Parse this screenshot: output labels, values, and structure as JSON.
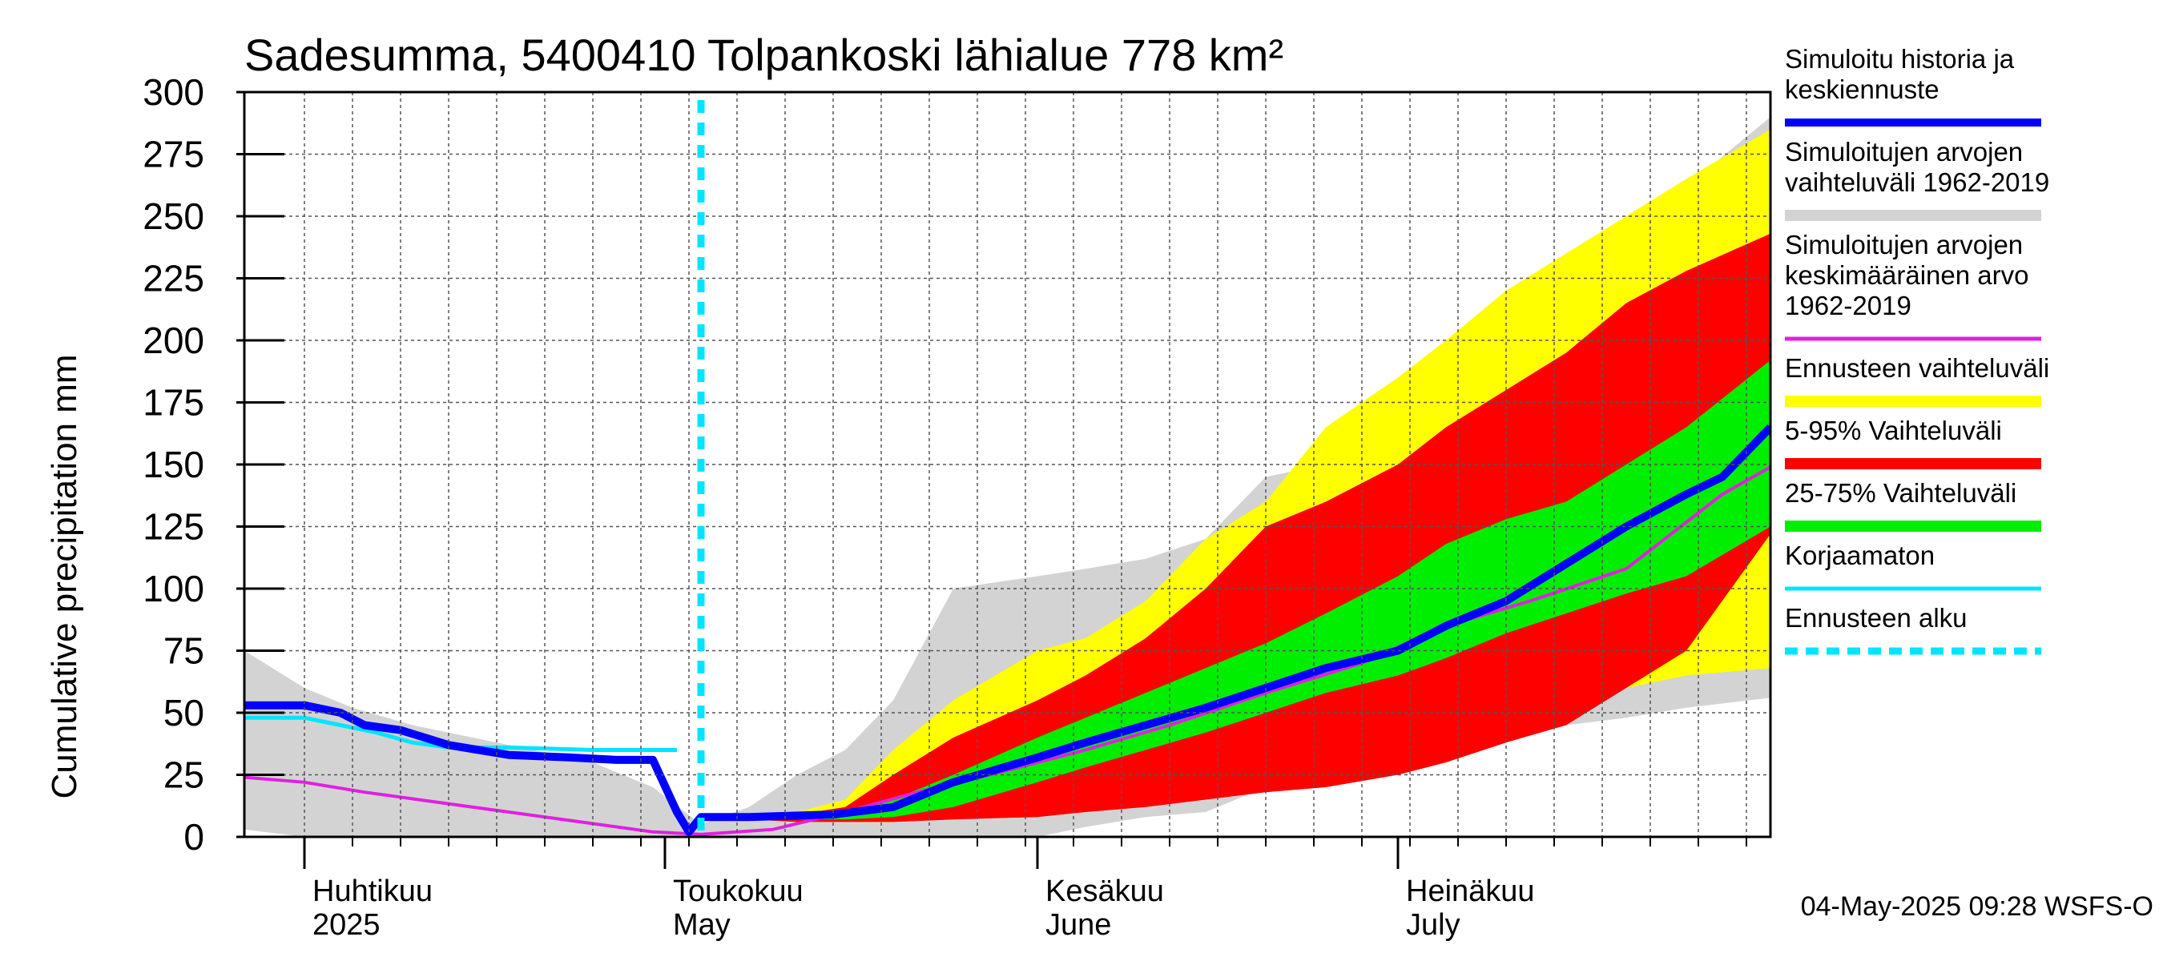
{
  "chart_data": {
    "type": "area",
    "title": "Sadesumma, 5400410 Tolpankoski lähialue 778 km²",
    "ylabel": "Cumulative precipitation   mm",
    "xlabel": "",
    "x_range": [
      "2025-03-27",
      "2025-08-01"
    ],
    "ylim": [
      0,
      300
    ],
    "yticks": [
      0,
      25,
      50,
      75,
      100,
      125,
      150,
      175,
      200,
      225,
      250,
      275,
      300
    ],
    "grid": true,
    "legend_position": "right",
    "month_labels": [
      {
        "date": "2025-04-01",
        "line1": "Huhtikuu",
        "line2": "2025"
      },
      {
        "date": "2025-05-01",
        "line1": "Toukokuu",
        "line2": "May"
      },
      {
        "date": "2025-06-01",
        "line1": "Kesäkuu",
        "line2": "June"
      },
      {
        "date": "2025-07-01",
        "line1": "Heinäkuu",
        "line2": "July"
      }
    ],
    "forecast_start": "2025-05-04",
    "colors": {
      "hist_range": "#d3d3d3",
      "forecast_range": "#ffff00",
      "p5_95": "#ff0000",
      "p25_75": "#00ee00",
      "simulated": "#0000ff",
      "mean": "#e020e0",
      "uncorrected": "#00e5ff",
      "forecast_start": "#00e5ff",
      "grid": "#555555"
    },
    "hist_range": {
      "x": [
        "2025-03-27",
        "2025-04-01",
        "2025-04-05",
        "2025-04-10",
        "2025-04-15",
        "2025-04-20",
        "2025-04-25",
        "2025-04-30",
        "2025-05-04",
        "2025-05-08",
        "2025-05-12",
        "2025-05-16",
        "2025-05-20",
        "2025-05-25",
        "2025-06-01",
        "2025-06-05",
        "2025-06-10",
        "2025-06-15",
        "2025-06-20",
        "2025-06-25",
        "2025-07-01",
        "2025-07-05",
        "2025-07-10",
        "2025-07-15",
        "2025-07-20",
        "2025-07-25",
        "2025-08-01"
      ],
      "upper": [
        75,
        60,
        52,
        45,
        40,
        35,
        30,
        20,
        5,
        12,
        25,
        35,
        55,
        100,
        105,
        108,
        112,
        120,
        145,
        150,
        155,
        172,
        190,
        205,
        230,
        262,
        290
      ],
      "lower": [
        3,
        0,
        0,
        0,
        0,
        0,
        0,
        0,
        0,
        0,
        0,
        0,
        0,
        0,
        0,
        4,
        8,
        10,
        20,
        25,
        30,
        40,
        44,
        45,
        48,
        52,
        56
      ]
    },
    "forecast_range": {
      "x": [
        "2025-05-04",
        "2025-05-08",
        "2025-05-12",
        "2025-05-16",
        "2025-05-20",
        "2025-05-25",
        "2025-06-01",
        "2025-06-05",
        "2025-06-10",
        "2025-06-15",
        "2025-06-20",
        "2025-06-25",
        "2025-07-01",
        "2025-07-05",
        "2025-07-10",
        "2025-07-15",
        "2025-07-20",
        "2025-07-25",
        "2025-08-01"
      ],
      "upper": [
        8,
        8,
        10,
        15,
        35,
        55,
        75,
        80,
        95,
        120,
        135,
        165,
        185,
        200,
        220,
        235,
        250,
        265,
        285
      ],
      "lower": [
        8,
        7,
        6,
        6,
        6,
        8,
        10,
        14,
        18,
        20,
        25,
        30,
        32,
        37,
        45,
        55,
        60,
        65,
        68
      ]
    },
    "p5_95": {
      "x": [
        "2025-05-04",
        "2025-05-08",
        "2025-05-12",
        "2025-05-16",
        "2025-05-20",
        "2025-05-25",
        "2025-06-01",
        "2025-06-05",
        "2025-06-10",
        "2025-06-15",
        "2025-06-20",
        "2025-06-25",
        "2025-07-01",
        "2025-07-05",
        "2025-07-10",
        "2025-07-15",
        "2025-07-20",
        "2025-07-25",
        "2025-08-01"
      ],
      "upper": [
        8,
        8,
        9,
        12,
        25,
        40,
        55,
        65,
        80,
        100,
        125,
        135,
        150,
        165,
        180,
        195,
        215,
        228,
        243
      ],
      "lower": [
        8,
        7,
        6,
        6,
        6,
        7,
        8,
        10,
        12,
        15,
        18,
        20,
        25,
        30,
        38,
        45,
        60,
        75,
        122
      ]
    },
    "p25_75": {
      "x": [
        "2025-05-04",
        "2025-05-08",
        "2025-05-12",
        "2025-05-16",
        "2025-05-20",
        "2025-05-25",
        "2025-06-01",
        "2025-06-05",
        "2025-06-10",
        "2025-06-15",
        "2025-06-20",
        "2025-06-25",
        "2025-07-01",
        "2025-07-05",
        "2025-07-10",
        "2025-07-15",
        "2025-07-20",
        "2025-07-25",
        "2025-08-01"
      ],
      "upper": [
        8,
        8,
        9,
        10,
        15,
        25,
        40,
        48,
        58,
        68,
        78,
        90,
        105,
        118,
        128,
        135,
        150,
        165,
        192
      ],
      "lower": [
        8,
        7,
        7,
        7,
        8,
        12,
        22,
        28,
        35,
        42,
        50,
        58,
        65,
        72,
        82,
        90,
        98,
        105,
        125
      ]
    },
    "simulated": {
      "x": [
        "2025-03-27",
        "2025-04-01",
        "2025-04-04",
        "2025-04-06",
        "2025-04-09",
        "2025-04-13",
        "2025-04-18",
        "2025-04-23",
        "2025-04-27",
        "2025-04-30",
        "2025-05-02",
        "2025-05-03",
        "2025-05-04",
        "2025-05-08",
        "2025-05-15",
        "2025-05-20",
        "2025-05-25",
        "2025-06-01",
        "2025-06-05",
        "2025-06-10",
        "2025-06-15",
        "2025-06-20",
        "2025-06-25",
        "2025-07-01",
        "2025-07-05",
        "2025-07-10",
        "2025-07-15",
        "2025-07-20",
        "2025-07-25",
        "2025-07-28",
        "2025-08-01"
      ],
      "y": [
        53,
        53,
        50,
        45,
        43,
        37,
        33,
        32,
        31,
        31,
        10,
        2,
        8,
        8,
        9,
        12,
        22,
        32,
        38,
        45,
        52,
        60,
        68,
        75,
        85,
        95,
        110,
        125,
        138,
        145,
        165
      ]
    },
    "mean": {
      "x": [
        "2025-03-27",
        "2025-04-01",
        "2025-04-06",
        "2025-04-12",
        "2025-04-18",
        "2025-04-24",
        "2025-04-30",
        "2025-05-04",
        "2025-05-10",
        "2025-05-16",
        "2025-05-22",
        "2025-05-28",
        "2025-06-05",
        "2025-06-12",
        "2025-06-20",
        "2025-06-28",
        "2025-07-05",
        "2025-07-12",
        "2025-07-20",
        "2025-07-28",
        "2025-08-01"
      ],
      "y": [
        24,
        22,
        18,
        14,
        10,
        6,
        2,
        1,
        3,
        10,
        18,
        25,
        35,
        45,
        58,
        70,
        85,
        95,
        108,
        138,
        149
      ]
    },
    "uncorrected": {
      "x": [
        "2025-03-27",
        "2025-04-01",
        "2025-04-04",
        "2025-04-07",
        "2025-04-10",
        "2025-04-13",
        "2025-04-18",
        "2025-04-25",
        "2025-05-02"
      ],
      "y": [
        48,
        48,
        45,
        42,
        38,
        36,
        36,
        35,
        35
      ]
    },
    "legend": [
      {
        "label": "Simuloitu historia ja keskiennuste",
        "lines": [
          "Simuloitu historia ja",
          "keskiennuste"
        ],
        "key": "simulated"
      },
      {
        "label": "Simuloitujen arvojen vaihteluväli 1962-2019",
        "lines": [
          "Simuloitujen arvojen",
          "vaihteluväli 1962-2019"
        ],
        "key": "hist_range"
      },
      {
        "label": "Simuloitujen arvojen keskimääräinen arvo 1962-2019",
        "lines": [
          "Simuloitujen arvojen",
          "keskimääräinen arvo",
          "   1962-2019"
        ],
        "key": "mean"
      },
      {
        "label": "Ennusteen vaihteluväli",
        "lines": [
          "Ennusteen vaihteluväli"
        ],
        "key": "forecast_range"
      },
      {
        "label": "5-95% Vaihteluväli",
        "lines": [
          "5-95% Vaihteluväli"
        ],
        "key": "p5_95"
      },
      {
        "label": "25-75% Vaihteluväli",
        "lines": [
          "25-75% Vaihteluväli"
        ],
        "key": "p25_75"
      },
      {
        "label": "Korjaamaton",
        "lines": [
          "Korjaamaton"
        ],
        "key": "uncorrected"
      },
      {
        "label": "Ennusteen alku",
        "lines": [
          "Ennusteen alku"
        ],
        "key": "forecast_start"
      }
    ],
    "timestamp": "04-May-2025 09:28 WSFS-O"
  }
}
